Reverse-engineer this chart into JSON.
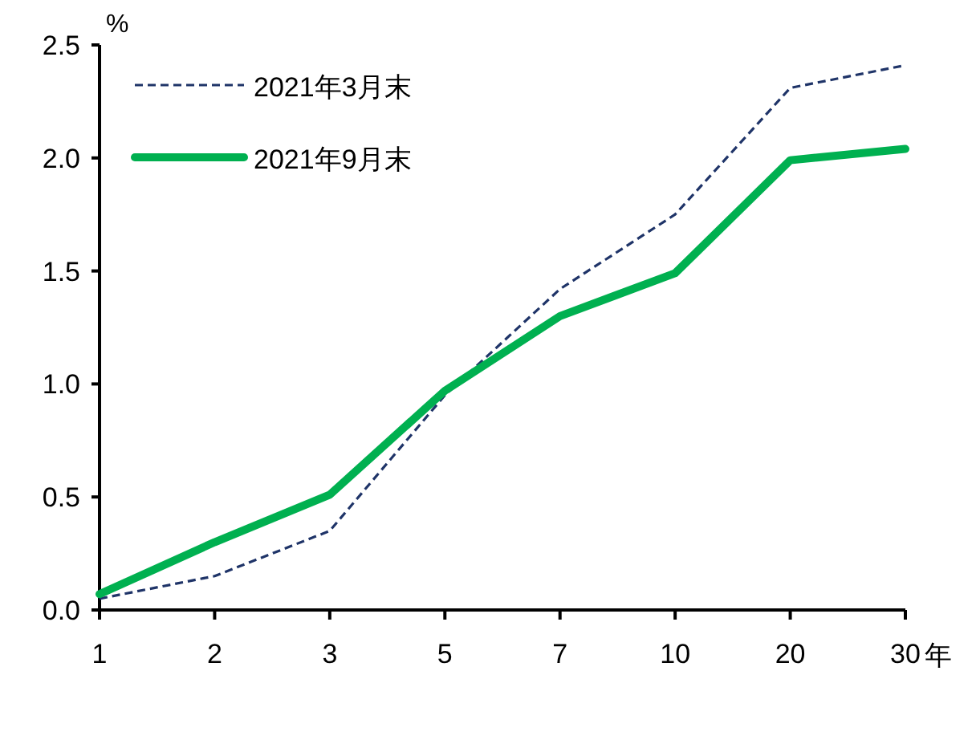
{
  "chart_data": {
    "type": "line",
    "xlabel": "年",
    "ylabel": "%",
    "categories": [
      "1",
      "2",
      "3",
      "5",
      "7",
      "10",
      "20",
      "30"
    ],
    "ylim": [
      0,
      2.5
    ],
    "yticks": [
      {
        "value": 0,
        "label": "0.0"
      },
      0.5,
      {
        "value": 1,
        "label": "1.0"
      },
      1.5,
      {
        "value": 2,
        "label": "2.0"
      },
      2.5
    ],
    "legend": "top left",
    "series": [
      {
        "name": "2021年3月末",
        "color": "#1f3468",
        "line_style": "dashed",
        "values": [
          0.05,
          0.15,
          0.35,
          0.95,
          1.42,
          1.75,
          2.31,
          2.41
        ]
      },
      {
        "name": "2021年9月末",
        "color": "#00b050",
        "line_style": "solid",
        "values": [
          0.07,
          0.3,
          0.51,
          0.97,
          1.3,
          1.49,
          1.99,
          2.04
        ]
      }
    ]
  }
}
